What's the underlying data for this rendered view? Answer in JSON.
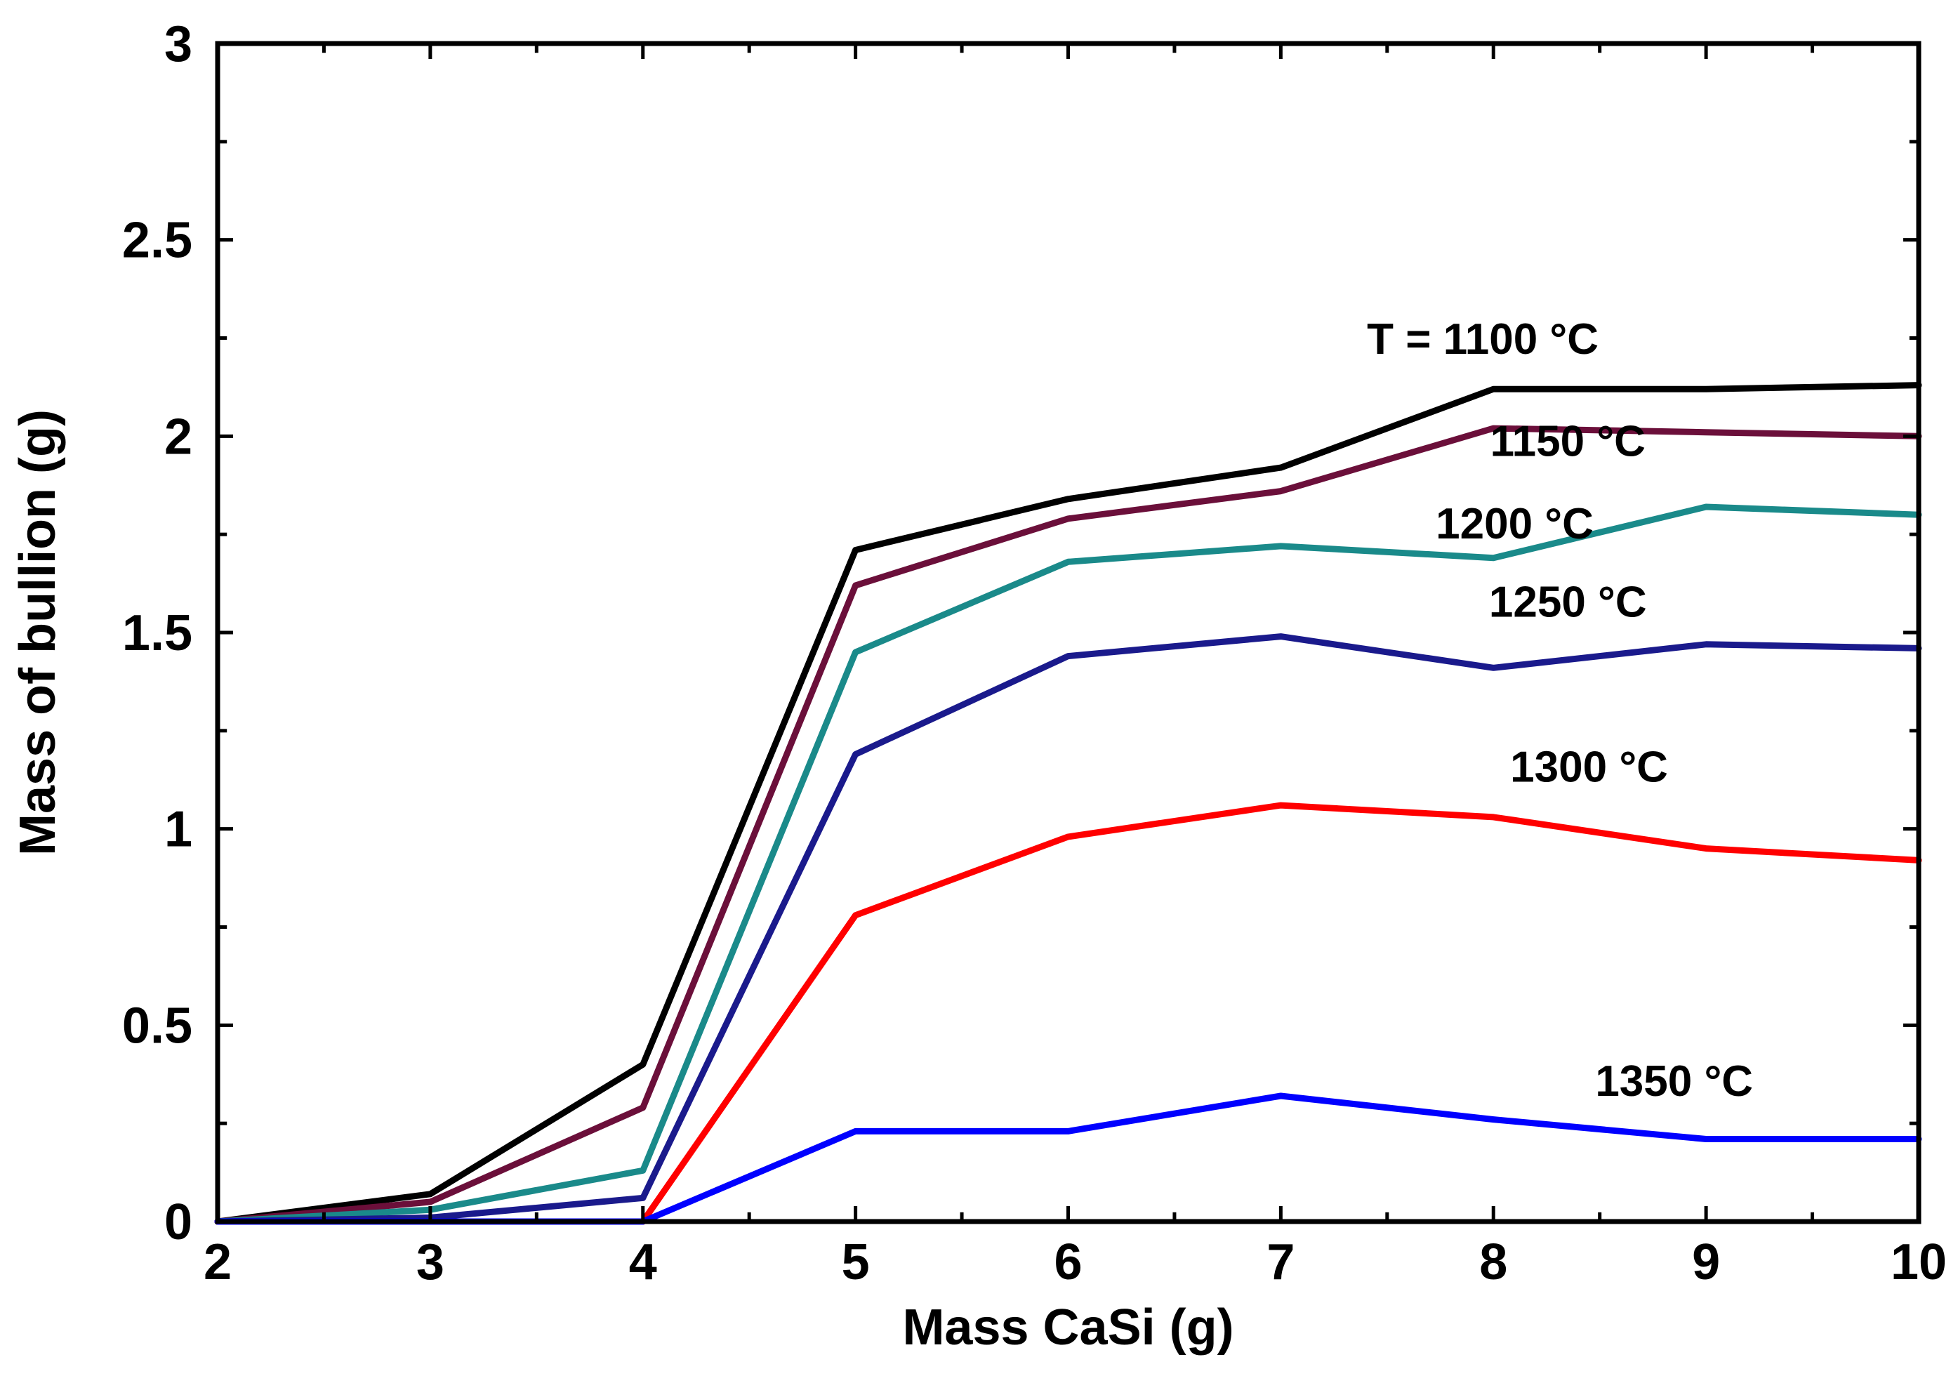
{
  "chart_data": {
    "type": "line",
    "title": "",
    "xlabel": "Mass CaSi (g)",
    "ylabel": "Mass of bullion (g)",
    "xlim": [
      2,
      10
    ],
    "ylim": [
      0,
      3
    ],
    "grid": false,
    "x_ticks": [
      2,
      3,
      4,
      5,
      6,
      7,
      8,
      9,
      10
    ],
    "x_tick_labels": [
      "2",
      "3",
      "4",
      "5",
      "6",
      "7",
      "8",
      "9",
      "10"
    ],
    "y_ticks": [
      0,
      0.5,
      1,
      1.5,
      2,
      2.5,
      3
    ],
    "y_tick_labels": [
      "0",
      "0.5",
      "1",
      "1.5",
      "2",
      "2.5",
      "3"
    ],
    "x": [
      2,
      3,
      4,
      5,
      6,
      7,
      8,
      9,
      10
    ],
    "series": [
      {
        "name": "T = 1100 °C",
        "color": "#000000",
        "values": [
          0.0,
          0.07,
          0.4,
          1.71,
          1.84,
          1.92,
          2.12,
          2.12,
          2.13
        ]
      },
      {
        "name": "1150 °C",
        "color": "#6b0f3a",
        "values": [
          0.0,
          0.05,
          0.29,
          1.62,
          1.79,
          1.86,
          2.02,
          2.01,
          2.0
        ]
      },
      {
        "name": "1200 °C",
        "color": "#1a8a8a",
        "values": [
          0.0,
          0.03,
          0.13,
          1.45,
          1.68,
          1.72,
          1.69,
          1.82,
          1.8
        ]
      },
      {
        "name": "1250 °C",
        "color": "#1a1a8c",
        "values": [
          0.0,
          0.01,
          0.06,
          1.19,
          1.44,
          1.49,
          1.41,
          1.47,
          1.46
        ]
      },
      {
        "name": "1300 °C",
        "color": "#ff0000",
        "values": [
          0.0,
          0.0,
          0.0,
          0.78,
          0.98,
          1.06,
          1.03,
          0.95,
          0.92
        ]
      },
      {
        "name": "1350 °C",
        "color": "#0000ff",
        "values": [
          0.0,
          0.0,
          0.0,
          0.23,
          0.23,
          0.32,
          0.26,
          0.21,
          0.21
        ]
      }
    ],
    "annotations": [
      {
        "text": "T = 1100 °C",
        "x": 7.95,
        "y": 2.21
      },
      {
        "text": "1150 °C",
        "x": 8.35,
        "y": 1.95
      },
      {
        "text": "1200 °C",
        "x": 8.1,
        "y": 1.74
      },
      {
        "text": "1250 °C",
        "x": 8.35,
        "y": 1.54
      },
      {
        "text": "1300 °C",
        "x": 8.45,
        "y": 1.12
      },
      {
        "text": "1350 °C",
        "x": 8.85,
        "y": 0.32
      }
    ]
  }
}
